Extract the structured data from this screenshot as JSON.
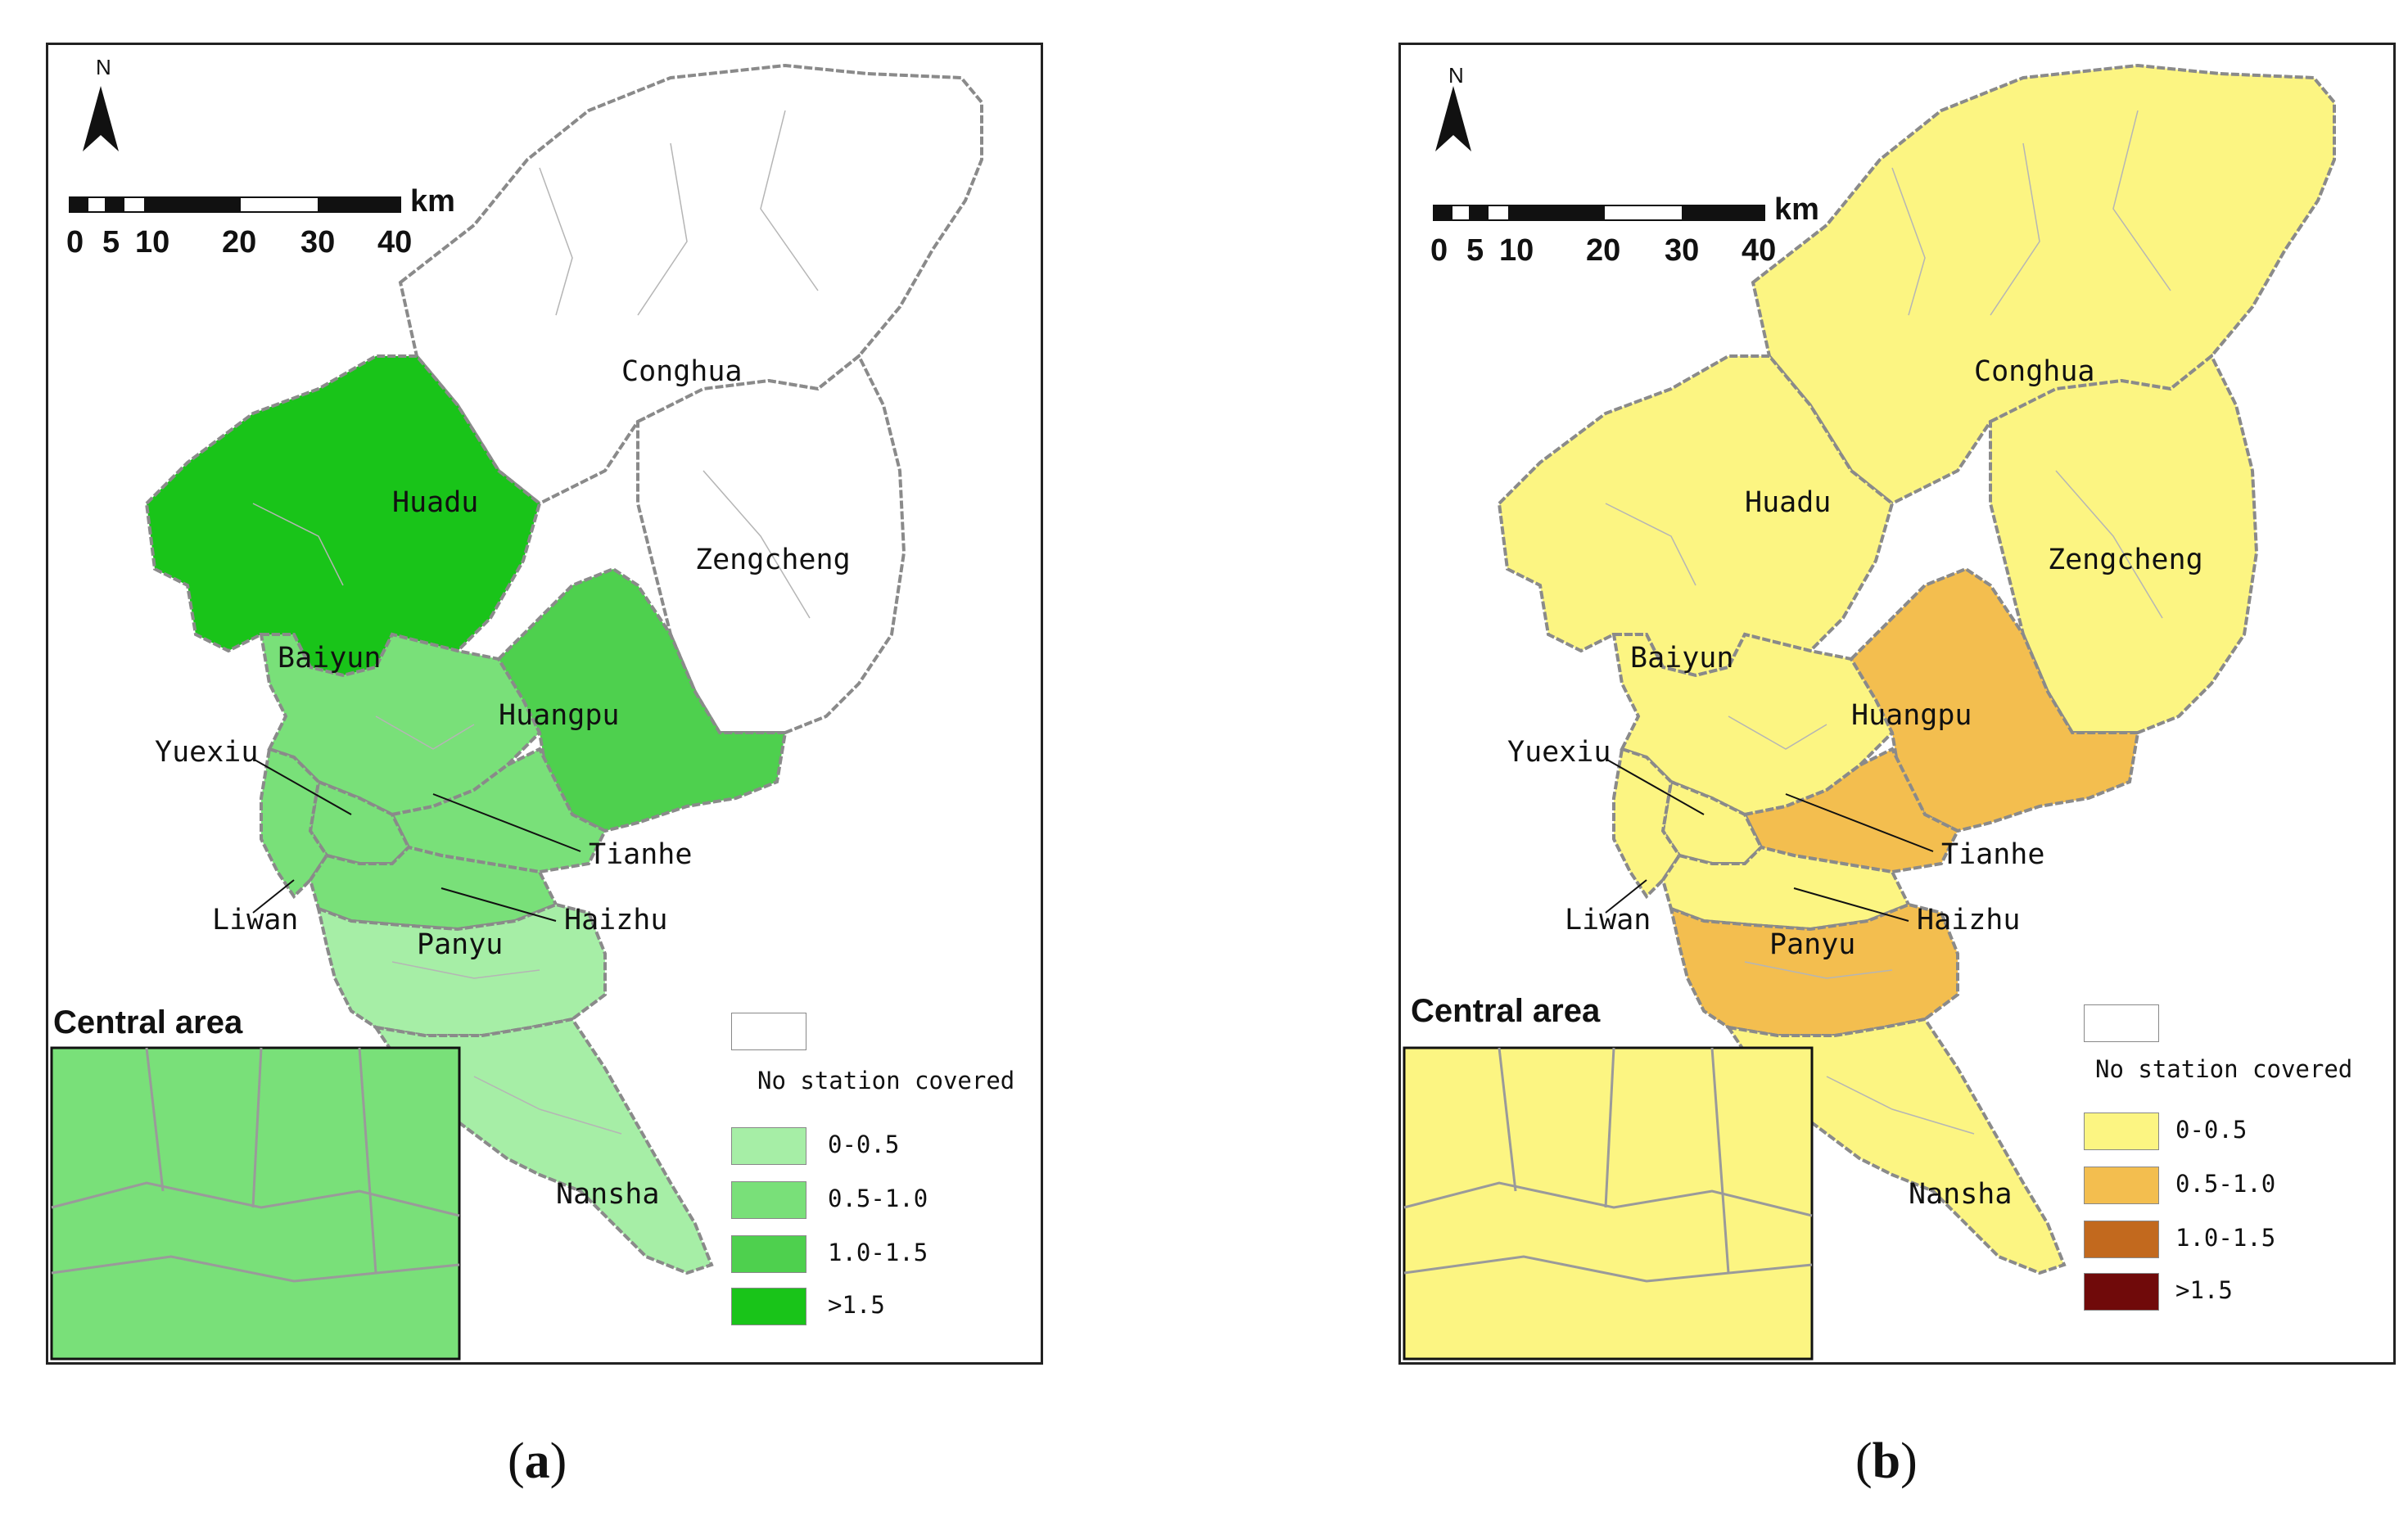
{
  "panels": [
    {
      "id": "a",
      "caption_letter": "a",
      "palette": {
        "none": "#ffffff",
        "c0": "#a6eea6",
        "c1": "#79e079",
        "c2": "#4ed04e",
        "c3": "#19c419"
      },
      "districts": {
        "Conghua": "none",
        "Zengcheng": "none",
        "Huadu": "c3",
        "Baiyun": "c1",
        "Huangpu": "c2",
        "Tianhe": "c1",
        "Yuexiu": "c1",
        "Liwan": "c1",
        "Haizhu": "c1",
        "Panyu": "c0",
        "Nansha": "c0"
      },
      "inset_fill": "c1",
      "inset_title": "Central area",
      "legend": [
        {
          "label": "No station covered",
          "color_key": "none"
        },
        {
          "label": "0-0.5",
          "color_key": "c0"
        },
        {
          "label": "0.5-1.0",
          "color_key": "c1"
        },
        {
          "label": "1.0-1.5",
          "color_key": "c2"
        },
        {
          "label": ">1.5",
          "color_key": "c3"
        }
      ]
    },
    {
      "id": "b",
      "caption_letter": "b",
      "palette": {
        "none": "#ffffff",
        "c0": "#fcf582",
        "c1": "#f3be4f",
        "c2": "#c2691e",
        "c3": "#700a0a"
      },
      "districts": {
        "Conghua": "c0",
        "Zengcheng": "c0",
        "Huadu": "c0",
        "Baiyun": "c0",
        "Huangpu": "c1",
        "Tianhe": "c1",
        "Yuexiu": "c0",
        "Liwan": "c0",
        "Haizhu": "c0",
        "Panyu": "c1",
        "Nansha": "c0"
      },
      "inset_fill": "c0",
      "inset_title": "Central area",
      "legend": [
        {
          "label": "No station covered",
          "color_key": "none"
        },
        {
          "label": "0-0.5",
          "color_key": "c0"
        },
        {
          "label": "0.5-1.0",
          "color_key": "c1"
        },
        {
          "label": "1.0-1.5",
          "color_key": "c2"
        },
        {
          "label": ">1.5",
          "color_key": "c3"
        }
      ]
    }
  ],
  "scale_bar": {
    "unit": "km",
    "ticks": [
      "0",
      "5",
      "10",
      "20",
      "30",
      "40"
    ]
  },
  "north_arrow": {
    "letter": "N",
    "icon": "north-arrow-icon"
  },
  "district_labels": {
    "Conghua": "Conghua",
    "Huadu": "Huadu",
    "Zengcheng": "Zengcheng",
    "Baiyun": "Baiyun",
    "Huangpu": "Huangpu",
    "Yuexiu": "Yuexiu",
    "Tianhe": "Tianhe",
    "Liwan": "Liwan",
    "Haizhu": "Haizhu",
    "Panyu": "Panyu",
    "Nansha": "Nansha"
  },
  "caption_paren_open": "(",
  "caption_paren_close": ")"
}
